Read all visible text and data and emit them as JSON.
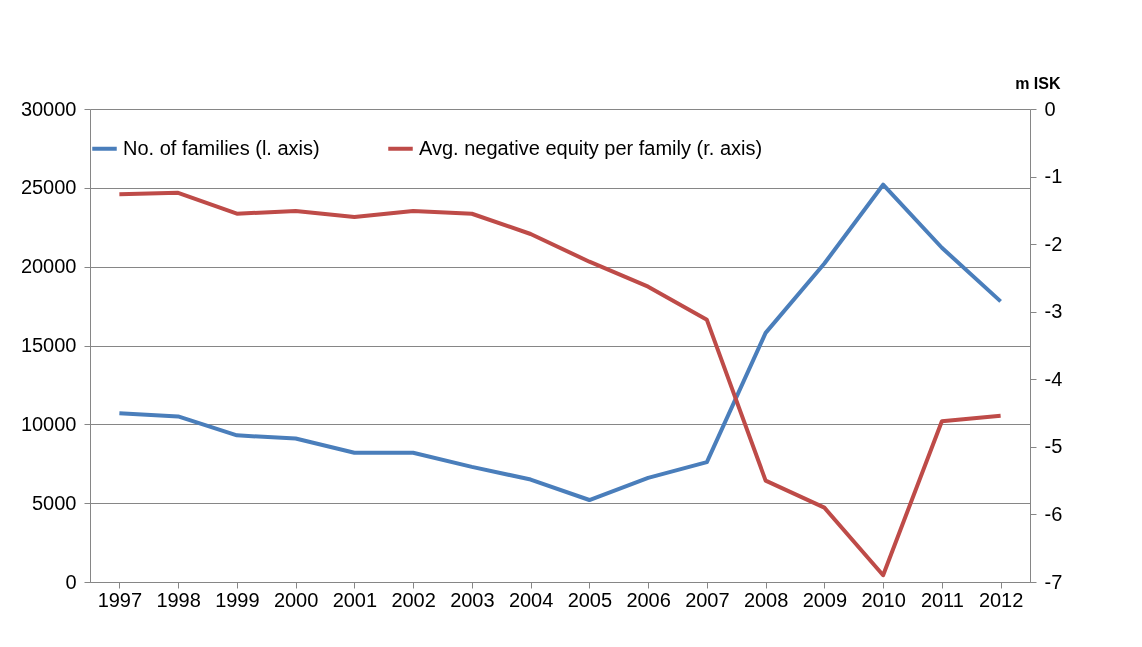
{
  "chart_data": {
    "type": "line",
    "y2label": "m ISK",
    "categories": [
      "1997",
      "1998",
      "1999",
      "2000",
      "2001",
      "2002",
      "2003",
      "2004",
      "2005",
      "2006",
      "2007",
      "2008",
      "2009",
      "2010",
      "2011",
      "2012"
    ],
    "series": [
      {
        "name": "No. of families (l. axis)",
        "color": "#4a7ebb",
        "axis": "y",
        "values": [
          10700,
          10500,
          9300,
          9100,
          8200,
          8200,
          7300,
          6500,
          5200,
          6600,
          7600,
          15800,
          20200,
          25200,
          21200,
          17800
        ]
      },
      {
        "name": "Avg. negative equity per family (r. axis)",
        "color": "#be4b48",
        "axis": "y2",
        "values": [
          -1.26,
          -1.24,
          -1.55,
          -1.51,
          -1.6,
          -1.51,
          -1.55,
          -1.85,
          -2.26,
          -2.63,
          -3.12,
          -5.5,
          -5.9,
          -6.9,
          -4.62,
          -4.54
        ]
      }
    ],
    "ylim": [
      0,
      30000
    ],
    "yticks": [
      0,
      5000,
      10000,
      15000,
      20000,
      25000,
      30000
    ],
    "y2lim": [
      -7,
      0
    ],
    "y2ticks": [
      -7,
      -6,
      -5,
      -4,
      -3,
      -2,
      -1,
      0
    ],
    "grid": "y",
    "legend": "top",
    "marker": "none",
    "line_style": "solid"
  }
}
